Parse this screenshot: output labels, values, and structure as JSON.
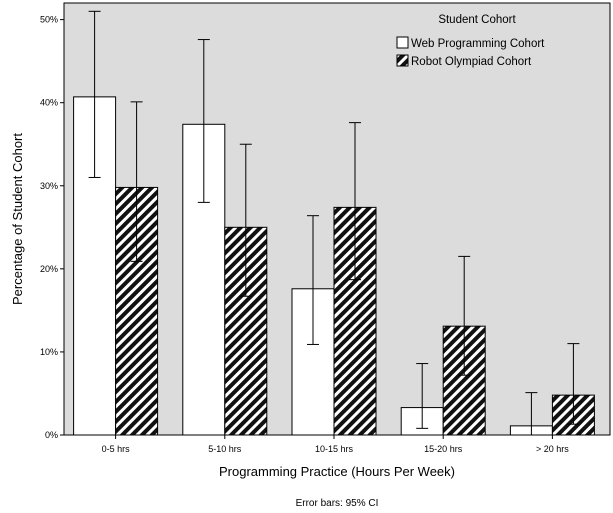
{
  "chart_data": {
    "type": "bar",
    "title": "",
    "xlabel": "Programming Practice (Hours Per Week)",
    "ylabel": "Percentage of Student Cohort",
    "ylim": [
      0,
      52
    ],
    "yticks": [
      {
        "value": 0,
        "label": "0%"
      },
      {
        "value": 10,
        "label": "10%"
      },
      {
        "value": 20,
        "label": "20%"
      },
      {
        "value": 30,
        "label": "30%"
      },
      {
        "value": 40,
        "label": "40%"
      },
      {
        "value": 50,
        "label": "50%"
      }
    ],
    "categories": [
      "0-5 hrs",
      "5-10 hrs",
      "10-15 hrs",
      "15-20 hrs",
      "> 20 hrs"
    ],
    "series": [
      {
        "name": "Web Programming Cohort",
        "pattern": "solid-white",
        "values": [
          40.7,
          37.4,
          17.6,
          3.3,
          1.1
        ],
        "ci_low": [
          31.0,
          28.0,
          10.9,
          0.8,
          0.0
        ],
        "ci_high": [
          51.0,
          47.6,
          26.4,
          8.6,
          5.1
        ]
      },
      {
        "name": "Robot Olympiad Cohort",
        "pattern": "diagonal-hatch",
        "values": [
          29.8,
          25.0,
          27.4,
          13.1,
          4.8
        ],
        "ci_low": [
          20.9,
          16.7,
          18.7,
          7.2,
          1.3
        ],
        "ci_high": [
          40.1,
          35.0,
          37.6,
          21.5,
          11.0
        ]
      }
    ],
    "legend": {
      "title": "Student Cohort",
      "position": "top-right"
    },
    "grid": false,
    "background": "#dcdcdc",
    "note": "Error bars: 95% CI"
  }
}
